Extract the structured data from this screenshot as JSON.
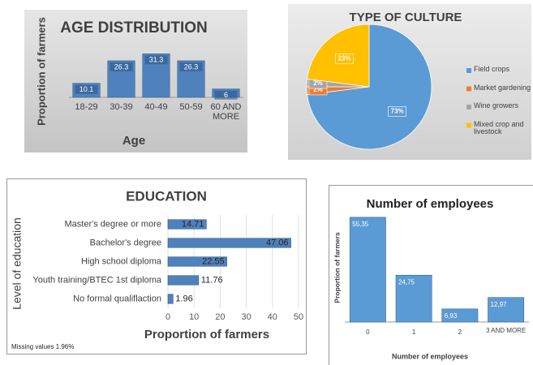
{
  "chart_data": [
    {
      "type": "bar",
      "title": "AGE DISTRIBUTION",
      "categories": [
        "18-29",
        "30-39",
        "40-49",
        "50-59",
        "60 AND MORE"
      ],
      "values": [
        10.1,
        26.3,
        31.3,
        26.3,
        6
      ],
      "color": "#4f81bd",
      "ylim": [
        0,
        35
      ],
      "y_label": "Proportion of farmers",
      "x_label": "Age"
    },
    {
      "type": "pie",
      "title": "TYPE OF CULTURE",
      "categories": [
        "Field crops",
        "Market gardening",
        "Wine growers",
        "Mixed crop and livestock"
      ],
      "values": [
        73,
        2,
        2,
        23
      ],
      "value_labels": [
        "73%",
        "2%",
        "2%",
        "23%"
      ],
      "colors": [
        "#5b9bd5",
        "#ed7d31",
        "#a5a5a5",
        "#ffc000"
      ],
      "legend": "right"
    },
    {
      "type": "barh",
      "title": "EDUCATION",
      "categories": [
        "Master's degree or more",
        "Bachelor's degree",
        "High school diploma",
        "Youth training/BTEC 1st diploma",
        "No formal qualiflaction"
      ],
      "values": [
        14.71,
        47.06,
        22.55,
        11.76,
        1.96
      ],
      "color": "#4f81bd",
      "xlim": [
        0,
        50
      ],
      "xticks": [
        0,
        10,
        20,
        30,
        40,
        50
      ],
      "x_label": "Proportion of farmers",
      "y_label": "Level of education",
      "note": "Missing values 1.96%"
    },
    {
      "type": "bar",
      "title": "Number of employees",
      "categories": [
        "0",
        "1",
        "2",
        "3 AND MORE"
      ],
      "values": [
        55.35,
        24.75,
        6.93,
        12.97
      ],
      "value_labels": [
        "55,35",
        "24,75",
        "6,93",
        "12,97"
      ],
      "color": "#5b9bd5",
      "ylim": [
        0,
        60
      ],
      "y_label": "Proportion of farmers",
      "x_label": "Number of employees"
    }
  ]
}
